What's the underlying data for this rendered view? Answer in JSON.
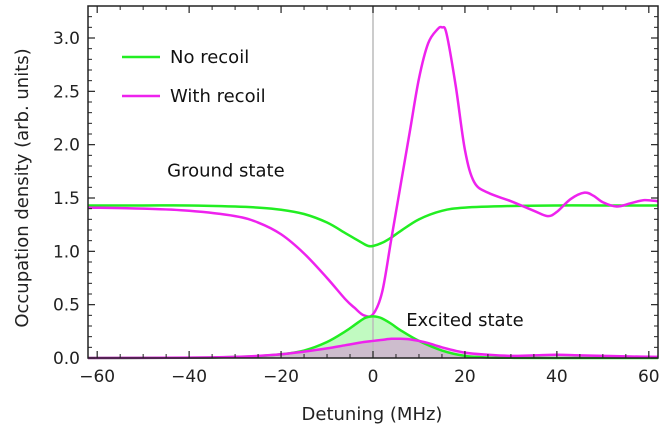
{
  "chart_data": {
    "type": "line",
    "title": "",
    "xlabel": "Detuning (MHz)",
    "ylabel": "Occupation density (arb. units)",
    "xlim": [
      -62,
      62
    ],
    "ylim": [
      0,
      3.3
    ],
    "xticks": [
      "−60",
      "−40",
      "−20",
      "0",
      "20",
      "40",
      "60"
    ],
    "xtick_values": [
      -60,
      -40,
      -20,
      0,
      20,
      40,
      60
    ],
    "yticks": [
      "0.0",
      "0.5",
      "1.0",
      "1.5",
      "2.0",
      "2.5",
      "3.0"
    ],
    "ytick_values": [
      0,
      0.5,
      1.0,
      1.5,
      2.0,
      2.5,
      3.0
    ],
    "grid": false,
    "vertical_line_x": 0,
    "legend_position": "top-left",
    "colors": {
      "no_recoil": "#22ee22",
      "with_recoil": "#ee22ee",
      "vline": "#bbbbbb",
      "axis": "#222222"
    },
    "annotations": [
      {
        "text": "Ground state",
        "x": -32,
        "y": 1.7
      },
      {
        "text": "Excited state",
        "x": 20,
        "y": 0.3
      }
    ],
    "series": [
      {
        "name": "No recoil",
        "color": "#22ee22",
        "group": "ground",
        "x": [
          -62,
          -50,
          -40,
          -30,
          -25,
          -20,
          -15,
          -10,
          -6,
          -4,
          -2,
          -1,
          0,
          2,
          4,
          6,
          10,
          15,
          20,
          30,
          40,
          50,
          62
        ],
        "y": [
          1.43,
          1.43,
          1.43,
          1.42,
          1.41,
          1.39,
          1.35,
          1.27,
          1.17,
          1.12,
          1.07,
          1.05,
          1.05,
          1.08,
          1.13,
          1.19,
          1.3,
          1.38,
          1.41,
          1.425,
          1.43,
          1.43,
          1.43
        ]
      },
      {
        "name": "With recoil",
        "color": "#ee22ee",
        "group": "ground",
        "x": [
          -62,
          -50,
          -40,
          -30,
          -25,
          -20,
          -15,
          -10,
          -6,
          -4,
          -2,
          0,
          2,
          4,
          6,
          8,
          10,
          12,
          14,
          15,
          16,
          18,
          20,
          22,
          25,
          30,
          35,
          38,
          40,
          43,
          46,
          48,
          50,
          53,
          56,
          59,
          62
        ],
        "y": [
          1.41,
          1.4,
          1.38,
          1.33,
          1.27,
          1.16,
          0.98,
          0.75,
          0.55,
          0.47,
          0.4,
          0.41,
          0.62,
          1.12,
          1.62,
          2.12,
          2.62,
          2.95,
          3.08,
          3.1,
          3.04,
          2.55,
          1.95,
          1.65,
          1.55,
          1.47,
          1.38,
          1.33,
          1.37,
          1.49,
          1.55,
          1.52,
          1.46,
          1.42,
          1.45,
          1.48,
          1.47
        ]
      },
      {
        "name": "No recoil",
        "color": "#22ee22",
        "group": "excited",
        "x": [
          -62,
          -40,
          -30,
          -25,
          -20,
          -15,
          -10,
          -6,
          -4,
          -2,
          -1,
          0,
          1,
          2,
          4,
          6,
          10,
          15,
          20,
          25,
          30,
          40,
          62
        ],
        "y": [
          0,
          0.002,
          0.01,
          0.018,
          0.035,
          0.07,
          0.15,
          0.25,
          0.31,
          0.37,
          0.385,
          0.39,
          0.385,
          0.37,
          0.32,
          0.26,
          0.16,
          0.07,
          0.02,
          0.005,
          0.002,
          0,
          0
        ]
      },
      {
        "name": "With recoil",
        "color": "#ee22ee",
        "group": "excited",
        "x": [
          -62,
          -40,
          -30,
          -25,
          -20,
          -15,
          -10,
          -6,
          -2,
          0,
          2,
          4,
          6,
          8,
          10,
          12,
          15,
          20,
          25,
          30,
          35,
          40,
          45,
          50,
          55,
          62
        ],
        "y": [
          0,
          0.003,
          0.01,
          0.02,
          0.035,
          0.06,
          0.09,
          0.12,
          0.15,
          0.16,
          0.17,
          0.18,
          0.18,
          0.175,
          0.16,
          0.14,
          0.1,
          0.05,
          0.03,
          0.02,
          0.025,
          0.03,
          0.025,
          0.02,
          0.015,
          0.01
        ]
      }
    ]
  }
}
